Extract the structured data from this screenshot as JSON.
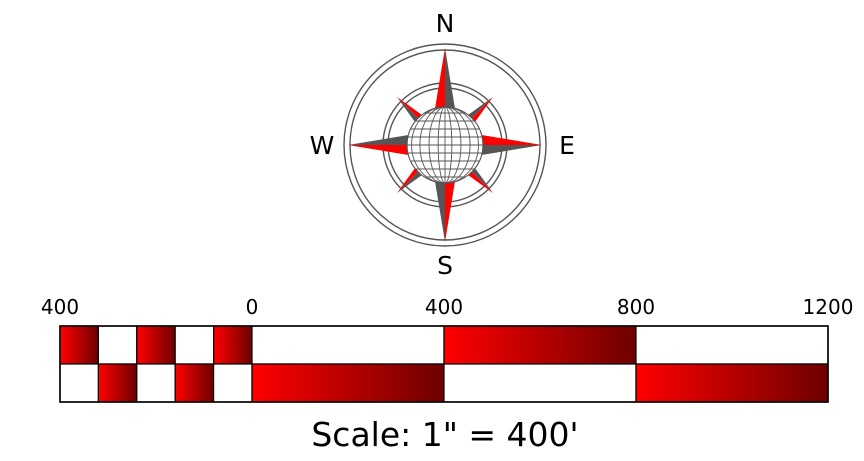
{
  "compass": {
    "north": "N",
    "south": "S",
    "east": "E",
    "west": "W",
    "colors": {
      "red": "#ff0000",
      "dark_red": "#6e0000",
      "gray": "#555555",
      "ring": "#555555",
      "globe_line": "#555555"
    }
  },
  "scale_bar": {
    "tick_labels": [
      "400",
      "0",
      "400",
      "800",
      "1200"
    ],
    "caption": "Scale: 1\" = 400'",
    "colors": {
      "gradient_start": "#ff0000",
      "gradient_end": "#6e0000",
      "outline": "#000000"
    }
  }
}
